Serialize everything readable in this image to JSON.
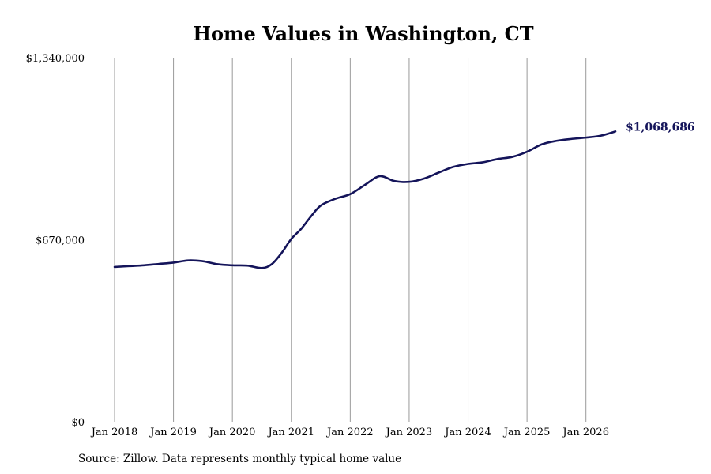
{
  "chart_data": {
    "type": "line",
    "title": "Home Values in Washington, CT",
    "xlabel": "",
    "ylabel": "",
    "x_tick_labels": [
      "Jan 2018",
      "Jan 2019",
      "Jan 2020",
      "Jan 2021",
      "Jan 2022",
      "Jan 2023",
      "Jan 2024",
      "Jan 2025",
      "Jan 2026"
    ],
    "y_tick_labels": [
      "$0",
      "$670,000",
      "$1,340,000"
    ],
    "ylim": [
      0,
      1340000
    ],
    "xlim": [
      "2018-01",
      "2026-07"
    ],
    "grid": {
      "vertical": true,
      "horizontal": false
    },
    "line_color": "#14145a",
    "grid_color": "#9a9a9a",
    "end_label": "$1,068,686",
    "series": [
      {
        "points": [
          {
            "x": "2018-01",
            "y": 570000
          },
          {
            "x": "2018-04",
            "y": 573000
          },
          {
            "x": "2018-07",
            "y": 576000
          },
          {
            "x": "2018-10",
            "y": 581000
          },
          {
            "x": "2019-01",
            "y": 586000
          },
          {
            "x": "2019-04",
            "y": 594000
          },
          {
            "x": "2019-07",
            "y": 591000
          },
          {
            "x": "2019-10",
            "y": 580000
          },
          {
            "x": "2020-01",
            "y": 576000
          },
          {
            "x": "2020-04",
            "y": 575000
          },
          {
            "x": "2020-07",
            "y": 566000
          },
          {
            "x": "2020-09",
            "y": 580000
          },
          {
            "x": "2020-11",
            "y": 621000
          },
          {
            "x": "2021-01",
            "y": 673000
          },
          {
            "x": "2021-03",
            "y": 710000
          },
          {
            "x": "2021-05",
            "y": 756000
          },
          {
            "x": "2021-07",
            "y": 796000
          },
          {
            "x": "2021-10",
            "y": 821000
          },
          {
            "x": "2022-01",
            "y": 838000
          },
          {
            "x": "2022-04",
            "y": 872000
          },
          {
            "x": "2022-07",
            "y": 904000
          },
          {
            "x": "2022-10",
            "y": 886000
          },
          {
            "x": "2023-01",
            "y": 883000
          },
          {
            "x": "2023-04",
            "y": 895000
          },
          {
            "x": "2023-07",
            "y": 917000
          },
          {
            "x": "2023-10",
            "y": 938000
          },
          {
            "x": "2024-01",
            "y": 949000
          },
          {
            "x": "2024-04",
            "y": 955000
          },
          {
            "x": "2024-07",
            "y": 967000
          },
          {
            "x": "2024-10",
            "y": 975000
          },
          {
            "x": "2025-01",
            "y": 994000
          },
          {
            "x": "2025-04",
            "y": 1021000
          },
          {
            "x": "2025-07",
            "y": 1034000
          },
          {
            "x": "2025-10",
            "y": 1041000
          },
          {
            "x": "2026-01",
            "y": 1046000
          },
          {
            "x": "2026-04",
            "y": 1053000
          },
          {
            "x": "2026-07",
            "y": 1068686
          }
        ]
      }
    ]
  },
  "footer": {
    "source": "Source: Zillow. Data represents monthly typical home value"
  }
}
